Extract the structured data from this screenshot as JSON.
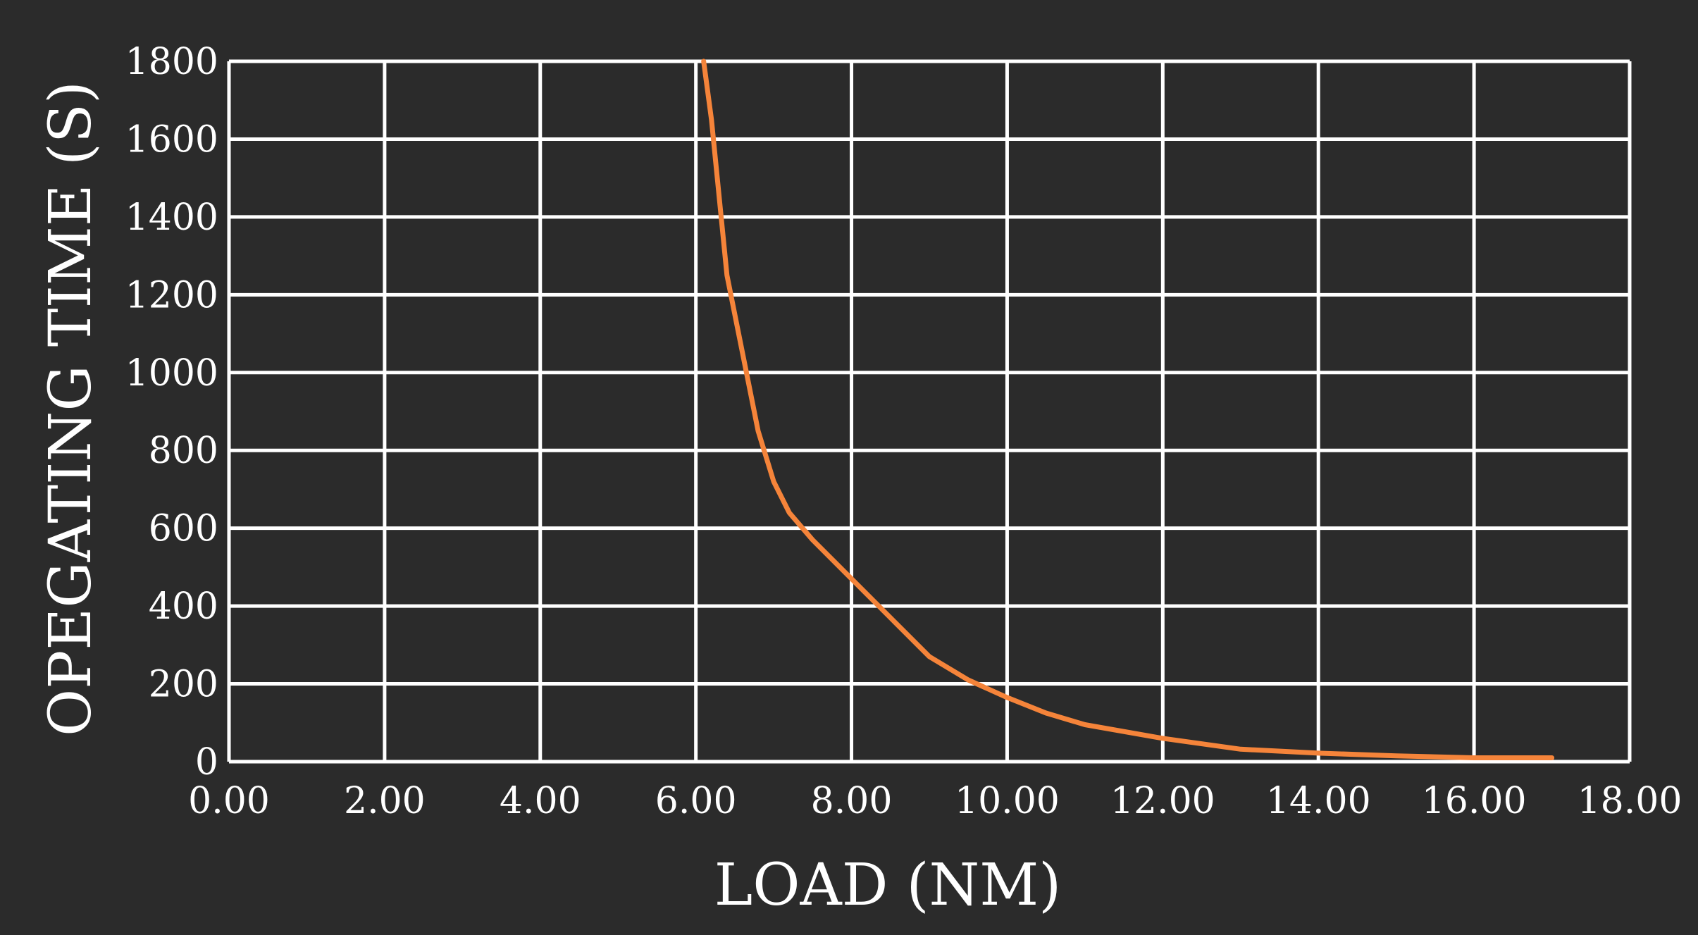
{
  "chart_data": {
    "type": "line",
    "xlabel": "LOAD (NM)",
    "ylabel": "OPEGATING TIME (S)",
    "xlim": [
      0,
      18
    ],
    "ylim": [
      0,
      1800
    ],
    "x_ticks": [
      "0.00",
      "2.00",
      "4.00",
      "6.00",
      "8.00",
      "10.00",
      "12.00",
      "14.00",
      "16.00",
      "18.00"
    ],
    "y_ticks": [
      "0",
      "200",
      "400",
      "600",
      "800",
      "1000",
      "1200",
      "1400",
      "1600",
      "1800"
    ],
    "grid": true,
    "background_color": "#2b2b2b",
    "grid_color": "#ffffff",
    "series": [
      {
        "color": "#f5843a",
        "points": [
          {
            "x": 6.1,
            "y": 1800
          },
          {
            "x": 6.2,
            "y": 1650
          },
          {
            "x": 6.4,
            "y": 1250
          },
          {
            "x": 6.6,
            "y": 1050
          },
          {
            "x": 6.8,
            "y": 850
          },
          {
            "x": 7.0,
            "y": 720
          },
          {
            "x": 7.2,
            "y": 640
          },
          {
            "x": 7.5,
            "y": 570
          },
          {
            "x": 8.0,
            "y": 470
          },
          {
            "x": 8.5,
            "y": 370
          },
          {
            "x": 9.0,
            "y": 270
          },
          {
            "x": 9.5,
            "y": 210
          },
          {
            "x": 10.0,
            "y": 165
          },
          {
            "x": 10.5,
            "y": 125
          },
          {
            "x": 11.0,
            "y": 95
          },
          {
            "x": 12.0,
            "y": 60
          },
          {
            "x": 13.0,
            "y": 32
          },
          {
            "x": 14.0,
            "y": 22
          },
          {
            "x": 15.0,
            "y": 15
          },
          {
            "x": 16.0,
            "y": 10
          },
          {
            "x": 17.0,
            "y": 10
          }
        ]
      }
    ]
  }
}
